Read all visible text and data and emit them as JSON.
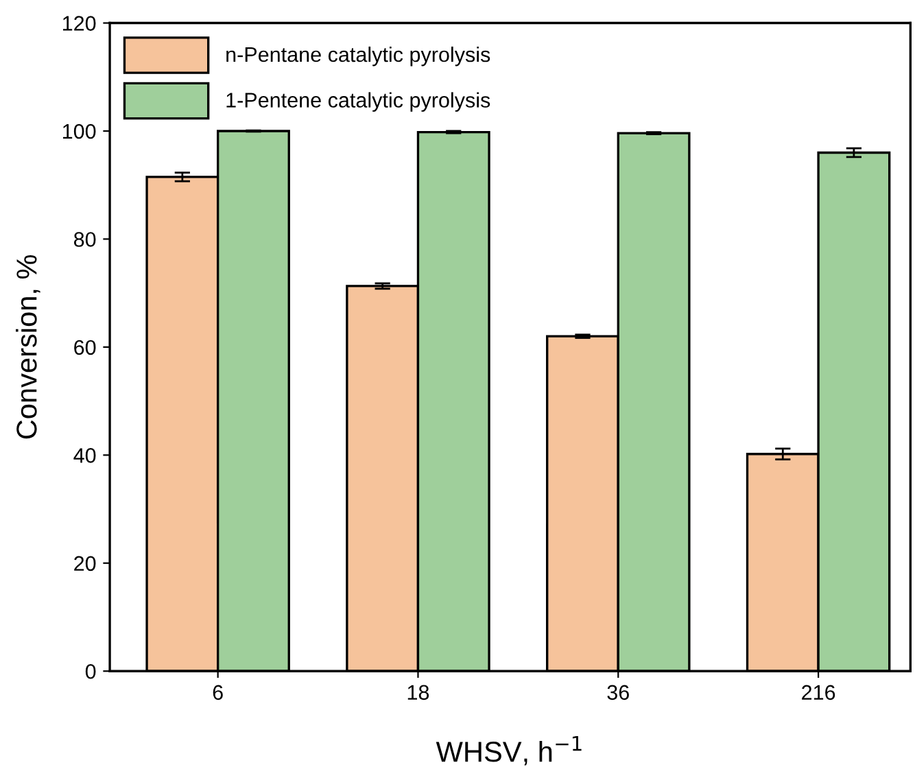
{
  "chart_data": {
    "type": "bar",
    "xlabel": "WHSV, h$^{−1}$",
    "ylabel": "Conversion, %",
    "categories": [
      "6",
      "18",
      "36",
      "216"
    ],
    "series": [
      {
        "name": "n-Pentane catalytic pyrolysis",
        "color": "#f6c39b",
        "values": [
          91.5,
          71.3,
          62.0,
          40.2
        ],
        "errors": [
          0.8,
          0.5,
          0.3,
          1.0
        ]
      },
      {
        "name": "1-Pentene catalytic pyrolysis",
        "color": "#9fcf9b",
        "values": [
          100.0,
          99.8,
          99.6,
          96.0
        ],
        "errors": [
          0.1,
          0.2,
          0.2,
          0.8
        ]
      }
    ],
    "ylim": [
      0,
      120
    ],
    "yticks": [
      0,
      20,
      40,
      60,
      80,
      100,
      120
    ],
    "grid": false,
    "legend": "top left"
  }
}
